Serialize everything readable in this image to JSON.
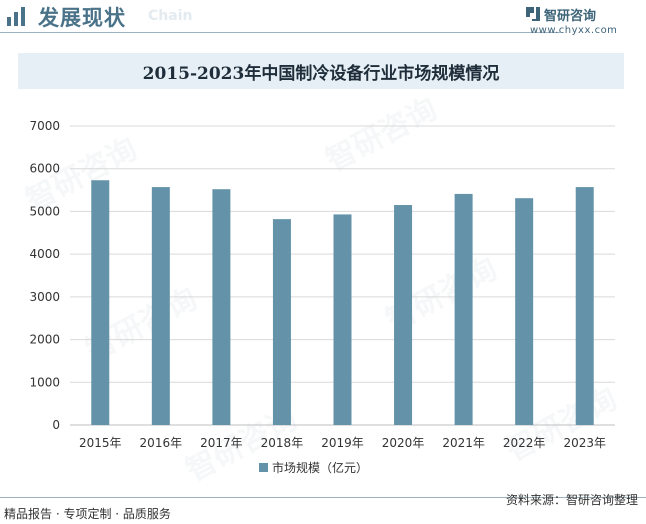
{
  "header": {
    "title": "发展现状",
    "subtitle": "Chain",
    "brand_name": "智研咨询",
    "brand_url": "www.chyxx.com"
  },
  "chart_title": "2015-2023年中国制冷设备行业市场规模情况",
  "chart_data": {
    "type": "bar",
    "title": "2015-2023年中国制冷设备行业市场规模情况",
    "categories": [
      "2015年",
      "2016年",
      "2017年",
      "2018年",
      "2019年",
      "2020年",
      "2021年",
      "2022年",
      "2023年"
    ],
    "series": [
      {
        "name": "市场规模（亿元）",
        "values": [
          5730,
          5570,
          5520,
          4820,
          4930,
          5150,
          5410,
          5310,
          5570
        ]
      }
    ],
    "yticks": [
      "0",
      "1000",
      "2000",
      "3000",
      "4000",
      "5000",
      "6000",
      "7000"
    ],
    "ylim": [
      0,
      7000
    ],
    "grid": true,
    "legend_position": "bottom",
    "colors": {
      "bar": "#6493a9",
      "grid": "#d9d9d9"
    }
  },
  "legend": {
    "label": "市场规模（亿元）"
  },
  "footer": {
    "left": "精品报告 · 专项定制 · 品质服务",
    "right": "资料来源：智研咨询整理"
  },
  "watermark": {
    "text": "智研咨询"
  }
}
